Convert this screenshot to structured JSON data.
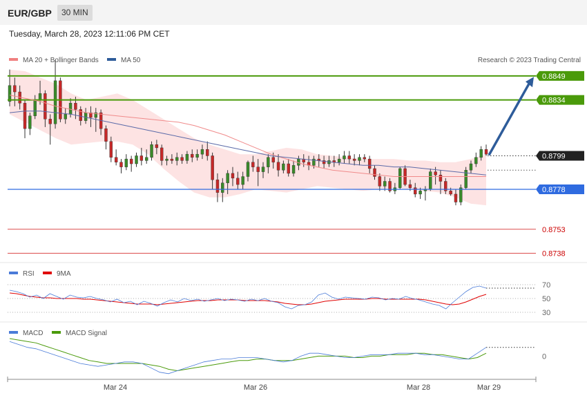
{
  "header": {
    "pair": "EUR/GBP",
    "timeframe": "30 MIN"
  },
  "datetime": "Tuesday, March 28, 2023 12:11:06 PM CET",
  "legend_main": [
    {
      "label": "MA 20 + Bollinger Bands",
      "color": "#f08080"
    },
    {
      "label": "MA 50",
      "color": "#2e5c9a"
    }
  ],
  "credit": "Research © 2023 Trading Central",
  "chart_data": [
    {
      "type": "candlestick",
      "panel": "price",
      "x_labels": [
        "Mar 24",
        "Mar 26",
        "Mar 28",
        "Mar 29"
      ],
      "price_range": [
        0.8733,
        0.8868
      ],
      "current_price": 0.8799,
      "levels": [
        {
          "value": 0.8849,
          "label": "0.8849",
          "kind": "resistance",
          "color": "#4a9a0a"
        },
        {
          "value": 0.8834,
          "label": "0.8834",
          "kind": "resistance",
          "color": "#4a9a0a"
        },
        {
          "value": 0.8799,
          "label": "0.8799",
          "kind": "current",
          "color": "#333333"
        },
        {
          "value": 0.8778,
          "label": "0.8778",
          "kind": "pivot",
          "color": "#2f6be0"
        },
        {
          "value": 0.8753,
          "label": "0.8753",
          "kind": "support",
          "color": "#cc0000"
        },
        {
          "value": 0.8738,
          "label": "0.8738",
          "kind": "support",
          "color": "#cc0000"
        }
      ],
      "forecast_target": 0.8848,
      "candles": [
        [
          0.8833,
          0.8843,
          0.8853,
          0.883
        ],
        [
          0.8843,
          0.8839,
          0.8848,
          0.883
        ],
        [
          0.8839,
          0.8832,
          0.8843,
          0.8828
        ],
        [
          0.8832,
          0.8816,
          0.8834,
          0.881
        ],
        [
          0.8816,
          0.8824,
          0.8826,
          0.8812
        ],
        [
          0.8824,
          0.8834,
          0.8837,
          0.8822
        ],
        [
          0.8834,
          0.8838,
          0.8846,
          0.8831
        ],
        [
          0.8838,
          0.8822,
          0.884,
          0.8817
        ],
        [
          0.8822,
          0.8819,
          0.8825,
          0.8806
        ],
        [
          0.8819,
          0.8846,
          0.8859,
          0.8816
        ],
        [
          0.8846,
          0.8822,
          0.8848,
          0.882
        ],
        [
          0.8822,
          0.8825,
          0.8829,
          0.8819
        ],
        [
          0.8825,
          0.8832,
          0.8835,
          0.8823
        ],
        [
          0.8832,
          0.8828,
          0.8836,
          0.8822
        ],
        [
          0.8828,
          0.8821,
          0.883,
          0.8818
        ],
        [
          0.8821,
          0.8826,
          0.8829,
          0.8819
        ],
        [
          0.8826,
          0.8823,
          0.883,
          0.8817
        ],
        [
          0.8823,
          0.8826,
          0.8829,
          0.8814
        ],
        [
          0.8826,
          0.8816,
          0.8828,
          0.8812
        ],
        [
          0.8816,
          0.8808,
          0.8818,
          0.8803
        ],
        [
          0.8808,
          0.8798,
          0.8811,
          0.8795
        ],
        [
          0.8798,
          0.8795,
          0.8803,
          0.8793
        ],
        [
          0.8795,
          0.8792,
          0.8797,
          0.8788
        ],
        [
          0.8792,
          0.8797,
          0.88,
          0.879
        ],
        [
          0.8797,
          0.8794,
          0.8799,
          0.8789
        ],
        [
          0.8794,
          0.8799,
          0.8801,
          0.8792
        ],
        [
          0.8799,
          0.8796,
          0.8804,
          0.8793
        ],
        [
          0.8796,
          0.8798,
          0.8803,
          0.8794
        ],
        [
          0.8798,
          0.8806,
          0.8808,
          0.8796
        ],
        [
          0.8806,
          0.8804,
          0.8809,
          0.88
        ],
        [
          0.8804,
          0.8796,
          0.8806,
          0.8793
        ],
        [
          0.8796,
          0.8797,
          0.8799,
          0.8793
        ],
        [
          0.8797,
          0.8796,
          0.88,
          0.8794
        ],
        [
          0.8796,
          0.8798,
          0.8801,
          0.8793
        ],
        [
          0.8798,
          0.8796,
          0.88,
          0.8794
        ],
        [
          0.8796,
          0.88,
          0.8802,
          0.8794
        ],
        [
          0.88,
          0.8798,
          0.8803,
          0.8795
        ],
        [
          0.8798,
          0.88,
          0.8803,
          0.8796
        ],
        [
          0.88,
          0.8803,
          0.8806,
          0.8797
        ],
        [
          0.8803,
          0.8799,
          0.8808,
          0.8796
        ],
        [
          0.8799,
          0.8784,
          0.8801,
          0.8778
        ],
        [
          0.8784,
          0.8776,
          0.8788,
          0.877
        ],
        [
          0.8776,
          0.8782,
          0.8785,
          0.877
        ],
        [
          0.8782,
          0.8788,
          0.879,
          0.8775
        ],
        [
          0.8788,
          0.8785,
          0.8792,
          0.878
        ],
        [
          0.8785,
          0.8781,
          0.8789,
          0.8778
        ],
        [
          0.8781,
          0.8786,
          0.8789,
          0.8778
        ],
        [
          0.8786,
          0.8795,
          0.8796,
          0.8783
        ],
        [
          0.8795,
          0.8792,
          0.8799,
          0.8789
        ],
        [
          0.8792,
          0.8789,
          0.8797,
          0.878
        ],
        [
          0.8789,
          0.8792,
          0.8795,
          0.8785
        ],
        [
          0.8792,
          0.8798,
          0.88,
          0.8788
        ],
        [
          0.8798,
          0.8795,
          0.8801,
          0.8791
        ],
        [
          0.8795,
          0.879,
          0.88,
          0.8786
        ],
        [
          0.879,
          0.8794,
          0.8796,
          0.8788
        ],
        [
          0.8794,
          0.8788,
          0.8797,
          0.8786
        ],
        [
          0.8788,
          0.8793,
          0.8796,
          0.8786
        ],
        [
          0.8793,
          0.8797,
          0.8799,
          0.879
        ],
        [
          0.8797,
          0.8795,
          0.88,
          0.8792
        ],
        [
          0.8795,
          0.8793,
          0.8799,
          0.879
        ],
        [
          0.8793,
          0.8797,
          0.8799,
          0.8791
        ],
        [
          0.8797,
          0.8796,
          0.88,
          0.8792
        ],
        [
          0.8796,
          0.8794,
          0.8799,
          0.8791
        ],
        [
          0.8794,
          0.8796,
          0.8799,
          0.8792
        ],
        [
          0.8796,
          0.8795,
          0.8799,
          0.8792
        ],
        [
          0.8795,
          0.8797,
          0.88,
          0.8793
        ],
        [
          0.8797,
          0.8799,
          0.8802,
          0.8794
        ],
        [
          0.8799,
          0.8797,
          0.8802,
          0.8794
        ],
        [
          0.8797,
          0.8796,
          0.88,
          0.8793
        ],
        [
          0.8796,
          0.8798,
          0.88,
          0.8793
        ],
        [
          0.8798,
          0.8797,
          0.88,
          0.8795
        ],
        [
          0.8797,
          0.8791,
          0.8799,
          0.8788
        ],
        [
          0.8791,
          0.8786,
          0.8793,
          0.8784
        ],
        [
          0.8786,
          0.878,
          0.8788,
          0.8777
        ],
        [
          0.878,
          0.8783,
          0.8786,
          0.8777
        ],
        [
          0.8783,
          0.8777,
          0.8785,
          0.8776
        ],
        [
          0.8777,
          0.8779,
          0.8782,
          0.8775
        ],
        [
          0.8779,
          0.8791,
          0.8792,
          0.8778
        ],
        [
          0.8791,
          0.8781,
          0.8793,
          0.878
        ],
        [
          0.8781,
          0.8779,
          0.8784,
          0.8777
        ],
        [
          0.8779,
          0.8775,
          0.8782,
          0.8773
        ],
        [
          0.8775,
          0.8777,
          0.8779,
          0.8772
        ],
        [
          0.8777,
          0.8778,
          0.878,
          0.8771
        ],
        [
          0.8778,
          0.8789,
          0.8791,
          0.8777
        ],
        [
          0.8789,
          0.8787,
          0.8792,
          0.8781
        ],
        [
          0.8787,
          0.8783,
          0.879,
          0.8775
        ],
        [
          0.8783,
          0.8777,
          0.8785,
          0.8775
        ],
        [
          0.8777,
          0.8775,
          0.8779,
          0.8774
        ],
        [
          0.8775,
          0.877,
          0.8778,
          0.8768
        ],
        [
          0.877,
          0.8779,
          0.8781,
          0.8768
        ],
        [
          0.8779,
          0.879,
          0.8792,
          0.8778
        ],
        [
          0.879,
          0.8794,
          0.8796,
          0.8788
        ],
        [
          0.8794,
          0.8798,
          0.8801,
          0.8792
        ],
        [
          0.8798,
          0.8803,
          0.8805,
          0.8796
        ],
        [
          0.8803,
          0.88,
          0.8806,
          0.8799
        ]
      ],
      "ma20": [
        0.8837,
        0.8835,
        0.8833,
        0.883,
        0.8828,
        0.8826,
        0.8825,
        0.8824,
        0.8823,
        0.8822,
        0.8821,
        0.882,
        0.8818,
        0.8815,
        0.8812,
        0.8808,
        0.8804,
        0.88,
        0.8797,
        0.8794,
        0.8792,
        0.879,
        0.8789,
        0.8788,
        0.8787,
        0.8786,
        0.8786,
        0.8786,
        0.8786,
        0.8786,
        0.8786,
        0.8786
      ],
      "ma50": [
        0.8826,
        0.8827,
        0.8827,
        0.8826,
        0.8825,
        0.8823,
        0.8821,
        0.8819,
        0.8817,
        0.8815,
        0.8813,
        0.8811,
        0.8809,
        0.8807,
        0.8805,
        0.8803,
        0.8801,
        0.8799,
        0.8798,
        0.8797,
        0.8796,
        0.8795,
        0.8794,
        0.8793,
        0.8793,
        0.8792,
        0.8792,
        0.8791,
        0.879,
        0.8789,
        0.8788,
        0.8787
      ],
      "bb_upper": [
        0.8853,
        0.8852,
        0.8848,
        0.8844,
        0.8838,
        0.8834,
        0.8836,
        0.8838,
        0.8834,
        0.8828,
        0.8822,
        0.8816,
        0.881,
        0.8806,
        0.8803,
        0.88,
        0.88,
        0.8802,
        0.8804,
        0.8803,
        0.88,
        0.8799,
        0.8798,
        0.8797,
        0.8797,
        0.8797,
        0.8796,
        0.8796,
        0.8795,
        0.8795,
        0.8797,
        0.88
      ],
      "bb_lower": [
        0.8825,
        0.882,
        0.8815,
        0.881,
        0.8806,
        0.8807,
        0.8808,
        0.8808,
        0.8806,
        0.88,
        0.8791,
        0.8783,
        0.8776,
        0.8773,
        0.8773,
        0.8775,
        0.8778,
        0.8777,
        0.8776,
        0.8778,
        0.878,
        0.8779,
        0.8778,
        0.8777,
        0.8778,
        0.8779,
        0.8778,
        0.8777,
        0.8776,
        0.8773,
        0.8769,
        0.8768
      ]
    },
    {
      "type": "line",
      "panel": "rsi",
      "legend": [
        {
          "label": "RSI",
          "color": "#4a7bd8"
        },
        {
          "label": "9MA",
          "color": "#e00000"
        }
      ],
      "y_ticks": [
        70,
        50,
        30
      ],
      "y_range": [
        22,
        78
      ],
      "series": [
        {
          "name": "RSI",
          "values": [
            62,
            60,
            57,
            52,
            55,
            50,
            57,
            53,
            49,
            55,
            52,
            51,
            53,
            50,
            48,
            45,
            49,
            44,
            46,
            41,
            46,
            43,
            39,
            44,
            48,
            45,
            50,
            47,
            49,
            46,
            48,
            50,
            47,
            49,
            48,
            46,
            49,
            47,
            50,
            46,
            44,
            38,
            35,
            40,
            41,
            45,
            55,
            58,
            52,
            49,
            52,
            51,
            50,
            49,
            52,
            51,
            48,
            50,
            49,
            53,
            50,
            48,
            45,
            42,
            40,
            35,
            44,
            52,
            60,
            66,
            68,
            65
          ]
        },
        {
          "name": "9MA",
          "values": [
            58,
            57,
            55,
            53,
            52,
            51,
            51,
            50,
            50,
            50,
            50,
            49,
            49,
            48,
            47,
            46,
            45,
            44,
            43,
            42,
            42,
            42,
            41,
            42,
            43,
            44,
            45,
            46,
            47,
            47,
            47,
            48,
            48,
            48,
            48,
            47,
            47,
            47,
            47,
            46,
            45,
            43,
            42,
            41,
            41,
            42,
            44,
            46,
            47,
            48,
            49,
            49,
            49,
            49,
            50,
            50,
            49,
            49,
            49,
            49,
            49,
            49,
            48,
            46,
            44,
            42,
            41,
            42,
            45,
            49,
            53,
            56
          ]
        }
      ]
    },
    {
      "type": "line",
      "panel": "macd",
      "legend": [
        {
          "label": "MACD",
          "color": "#4a7bd8"
        },
        {
          "label": "MACD Signal",
          "color": "#4a9a0a"
        }
      ],
      "y_ticks": [
        0
      ],
      "y_range": [
        -0.0014,
        0.0012
      ],
      "series": [
        {
          "name": "MACD",
          "values": [
            0.001,
            0.0008,
            0.0006,
            0.0005,
            0.0003,
            0.0001,
            -0.0001,
            -0.0003,
            -0.0005,
            -0.0006,
            -0.0007,
            -0.0006,
            -0.0005,
            -0.0004,
            -0.0004,
            -0.0005,
            -0.0008,
            -0.0011,
            -0.0012,
            -0.001,
            -0.0008,
            -0.0006,
            -0.0004,
            -0.0003,
            -0.0002,
            -0.0002,
            -0.0001,
            -0.0001,
            -0.0001,
            -0.0002,
            -0.0003,
            -0.0004,
            -0.0003,
            0.0,
            0.0002,
            0.0002,
            0.0001,
            0.0,
            -0.0001,
            -0.0001,
            0.0,
            0.0001,
            0.0001,
            0.0001,
            0.0002,
            0.0002,
            0.0002,
            0.0001,
            0.0001,
            0.0,
            -0.0001,
            -0.0002,
            -0.0002,
            0.0002,
            0.0006
          ]
        },
        {
          "name": "MACD Signal",
          "values": [
            0.0012,
            0.0011,
            0.001,
            0.0009,
            0.0007,
            0.0005,
            0.0003,
            0.0001,
            -0.0001,
            -0.0003,
            -0.0004,
            -0.0005,
            -0.0005,
            -0.0005,
            -0.0005,
            -0.0005,
            -0.0006,
            -0.0007,
            -0.0009,
            -0.001,
            -0.0009,
            -0.0008,
            -0.0007,
            -0.0006,
            -0.0005,
            -0.0004,
            -0.0003,
            -0.0003,
            -0.0002,
            -0.0002,
            -0.0003,
            -0.0003,
            -0.0003,
            -0.0002,
            -0.0001,
            0.0,
            0.0,
            0.0,
            0.0,
            -0.0001,
            -0.0001,
            0.0,
            0.0,
            0.0001,
            0.0001,
            0.0001,
            0.0002,
            0.0002,
            0.0001,
            0.0001,
            0.0,
            -0.0001,
            -0.0002,
            -0.0001,
            0.0002
          ]
        }
      ]
    }
  ]
}
